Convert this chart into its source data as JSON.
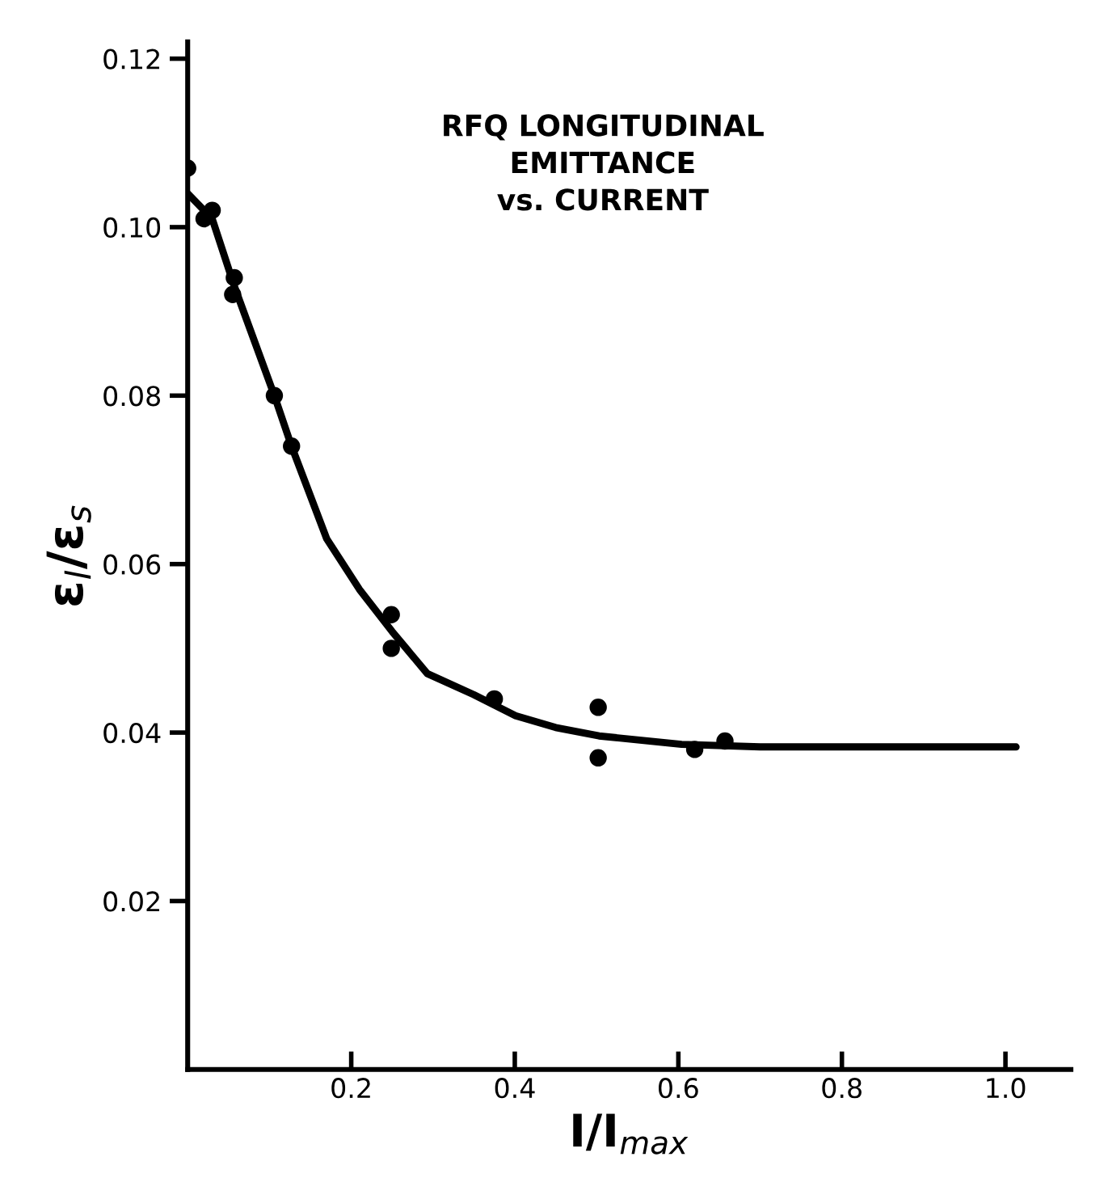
{
  "chart_data": {
    "type": "scatter",
    "title": "RFQ LONGITUDINAL\nEMITTANCE\nvs. CURRENT",
    "xlabel": "I/I$_{max}$",
    "ylabel": "ε$_{l}$/ε$_{s}$",
    "xlim": [
      0,
      1.08
    ],
    "ylim": [
      0,
      0.122
    ],
    "xticks": [
      0.2,
      0.4,
      0.6,
      0.8,
      {
        "value": 1.0,
        "label": "1.0"
      }
    ],
    "yticks": [
      0.02,
      0.04,
      0.06,
      0.08,
      {
        "value": 0.1,
        "label": "0.10"
      },
      0.12
    ],
    "grid": false,
    "legend": false,
    "series": [
      {
        "color": "#000000",
        "marker": "circle",
        "x": [
          0,
          0.02,
          0.03,
          0.057,
          0.055,
          0.106,
          0.127,
          0.249,
          0.249,
          0.375,
          0.502,
          0.502,
          0.62,
          0.657
        ],
        "values": [
          0.107,
          0.101,
          0.102,
          0.094,
          0.092,
          0.08,
          0.074,
          0.054,
          0.05,
          0.044,
          0.043,
          0.037,
          0.038,
          0.039
        ]
      },
      {
        "type": "line",
        "color": "#000000",
        "marker": "none",
        "line_style": "solid",
        "x": [
          0,
          0.03,
          0.057,
          0.106,
          0.127,
          0.17,
          0.21,
          0.25,
          0.293,
          0.35,
          0.401,
          0.45,
          0.503,
          0.604,
          0.7,
          0.8,
          1.013
        ],
        "values": [
          0.104,
          0.101,
          0.093,
          0.08,
          0.074,
          0.063,
          0.057,
          0.052,
          0.047,
          0.0445,
          0.042,
          0.0406,
          0.0396,
          0.0386,
          0.0383,
          0.0383,
          0.0383
        ]
      }
    ]
  }
}
